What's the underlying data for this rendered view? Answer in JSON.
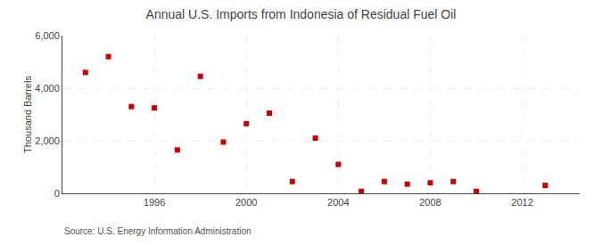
{
  "chart_data": {
    "type": "scatter",
    "title": "Annual U.S. Imports from Indonesia of Residual Fuel Oil",
    "ylabel": "Thousand Barrels",
    "source": "Source: U.S. Energy Information Administration",
    "x": [
      1993,
      1994,
      1995,
      1996,
      1997,
      1998,
      1999,
      2000,
      2001,
      2002,
      2003,
      2004,
      2005,
      2006,
      2007,
      2008,
      2009,
      2010,
      2013
    ],
    "values": [
      4600,
      5200,
      3300,
      3250,
      1650,
      4450,
      1950,
      2650,
      3050,
      450,
      2100,
      1100,
      75,
      450,
      350,
      400,
      450,
      75,
      300
    ],
    "color": "#cc0000",
    "marker": "square",
    "xlim": [
      1992,
      2014.5
    ],
    "xticks": [
      1996,
      2000,
      2004,
      2008,
      2012
    ],
    "ylim": [
      0,
      6000
    ],
    "yticks": [
      0,
      {
        "value": 2000,
        "label": "2,000"
      },
      {
        "value": 4000,
        "label": "4,000"
      },
      {
        "value": 6000,
        "label": "6,000"
      }
    ],
    "grid": true
  }
}
